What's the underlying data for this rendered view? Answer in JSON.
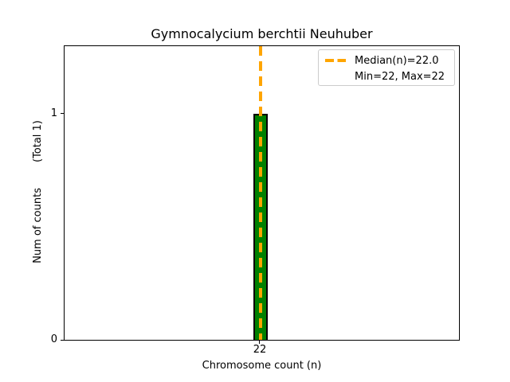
{
  "figure": {
    "title": "Gymnocalycium berchtii Neuhuber",
    "axes": {
      "xlabel": "Chromosome count (n)",
      "ylabel": "Num of counts",
      "ylabel_total": "(Total 1)",
      "xtick_labels": [
        "22"
      ],
      "ytick_labels": [
        "0",
        "1"
      ]
    },
    "legend": {
      "median_label": "Median(n)=22.0",
      "minmax_label": "Min=22, Max=22"
    },
    "colors": {
      "bar_fill": "#008000",
      "bar_edge": "#000000",
      "median_line": "#FFA500",
      "legend_border": "#cccccc",
      "text": "#000000",
      "background": "#ffffff"
    }
  },
  "chart_data": {
    "type": "bar",
    "title": "Gymnocalycium berchtii Neuhuber",
    "xlabel": "Chromosome count (n)",
    "ylabel": "Num of counts (Total 1)",
    "categories": [
      22
    ],
    "values": [
      1
    ],
    "total_counts": 1,
    "median_n": 22.0,
    "min_n": 22,
    "max_n": 22,
    "xticks": [
      22
    ],
    "yticks": [
      0,
      1
    ],
    "ylim": [
      0,
      1.3
    ],
    "grid": false,
    "legend_entries": [
      "Median(n)=22.0",
      "Min=22, Max=22"
    ],
    "legend_position": "upper right",
    "bar_color": "#008000",
    "bar_edge_color": "#000000",
    "median_line_color": "#FFA500",
    "median_line_style": "dashed"
  }
}
